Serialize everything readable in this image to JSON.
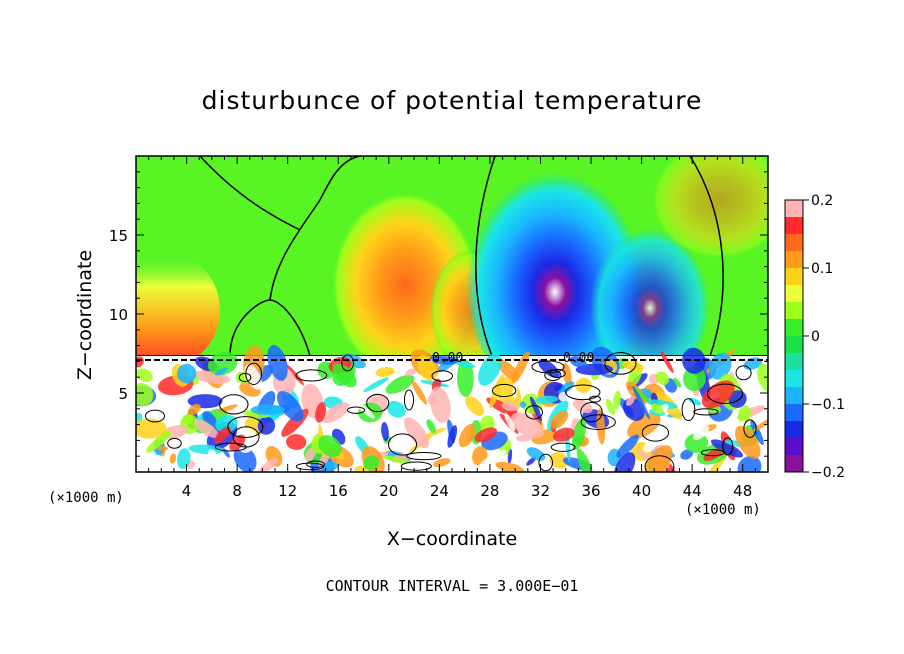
{
  "chart_data": {
    "type": "heatmap",
    "title": "disturbunce of potential temperature",
    "xlabel": "X−coordinate",
    "ylabel": "Z−coordinate",
    "x_unit_left": "(×1000 m)",
    "x_unit_right": "(×1000 m)",
    "footer": "CONTOUR INTERVAL = 3.000E−01",
    "contour_interval": 0.3,
    "contour_labels": [
      "0.00",
      "0.00"
    ],
    "xlim": [
      0,
      50
    ],
    "ylim": [
      0,
      20
    ],
    "x_ticks": [
      "4",
      "8",
      "12",
      "16",
      "20",
      "24",
      "28",
      "32",
      "36",
      "40",
      "44",
      "48"
    ],
    "y_ticks": [
      "5",
      "10",
      "15"
    ],
    "colorbar": {
      "range": [
        -0.2,
        0.2
      ],
      "tick_labels": [
        "0.2",
        "0.1",
        "0",
        "−0.1",
        "−0.2"
      ],
      "tick_values": [
        0.2,
        0.1,
        0,
        -0.1,
        -0.2
      ],
      "colors": [
        "#ffb4b4",
        "#ff2a2a",
        "#ff6a1a",
        "#ff9a1a",
        "#ffd21a",
        "#eaff3a",
        "#9cff1a",
        "#36ef2a",
        "#1ae04a",
        "#1ae0a0",
        "#1ae6e6",
        "#1ab4ff",
        "#1a6aff",
        "#1a2ae6",
        "#5a10c8",
        "#8a10a0"
      ]
    },
    "layers": [
      {
        "region": "upper",
        "z_range": [
          7.5,
          20
        ],
        "description_values": {
          "max": 0.15,
          "min": -0.2
        }
      },
      {
        "region": "lower",
        "z_range": [
          0,
          7.5
        ],
        "description_values": {
          "max": 0.2,
          "min": -0.2
        }
      }
    ]
  }
}
